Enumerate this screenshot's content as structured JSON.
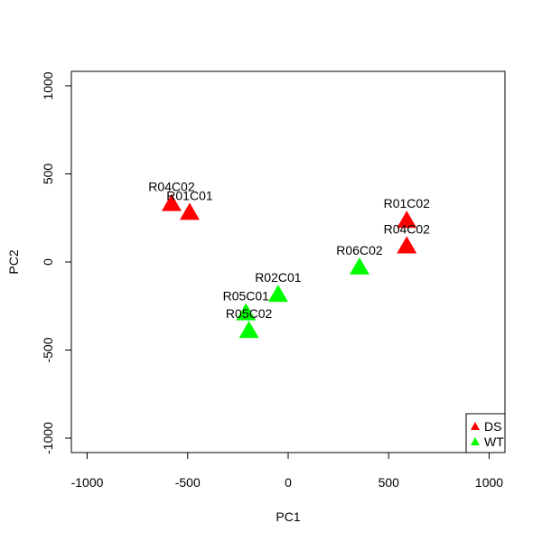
{
  "chart_data": {
    "type": "scatter",
    "xlabel": "PC1",
    "ylabel": "PC2",
    "xlim": [
      -1000,
      1000
    ],
    "ylim": [
      -1000,
      1000
    ],
    "x_ticks": [
      "-1000",
      "-500",
      "0",
      "500",
      "1000"
    ],
    "y_ticks": [
      "-1000",
      "-500",
      "0",
      "500",
      "1000"
    ],
    "grid": false,
    "legend": "bottom-right",
    "series": [
      {
        "name": "DS",
        "color": "#ff0000",
        "points": [
          {
            "label": "R04C02",
            "x": -580,
            "y": 335
          },
          {
            "label": "R01C01",
            "x": -490,
            "y": 285
          },
          {
            "label": "R01C02",
            "x": 590,
            "y": 240
          },
          {
            "label": "R04C02",
            "x": 590,
            "y": 95
          }
        ]
      },
      {
        "name": "WT",
        "color": "#00ff00",
        "points": [
          {
            "label": "R06C02",
            "x": 355,
            "y": -25
          },
          {
            "label": "R02C01",
            "x": -50,
            "y": -180
          },
          {
            "label": "R05C01",
            "x": -210,
            "y": -285
          },
          {
            "label": "R05C02",
            "x": -195,
            "y": -385
          }
        ]
      }
    ]
  }
}
